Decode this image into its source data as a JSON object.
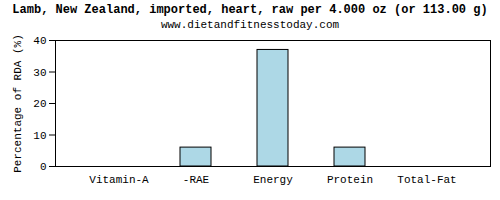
{
  "chart_data": {
    "type": "bar",
    "title": "Lamb, New Zealand, imported, heart, raw per 4.000 oz (or 113.00 g)",
    "subtitle": "www.dietandfitnesstoday.com",
    "y_label": "Percentage of RDA (%)",
    "categories": [
      "Vitamin-A",
      "-RAE",
      "Energy",
      "Protein",
      "Total-Fat"
    ],
    "values": [
      0,
      6,
      37,
      6,
      0
    ],
    "color": "#add8e6",
    "ylim": [
      0,
      40
    ],
    "yticks": [
      0,
      10,
      20,
      30,
      40
    ],
    "grid": false
  }
}
